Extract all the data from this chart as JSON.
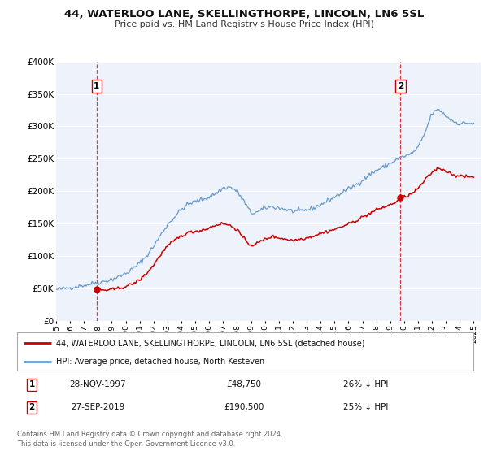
{
  "title": "44, WATERLOO LANE, SKELLINGTHORPE, LINCOLN, LN6 5SL",
  "subtitle": "Price paid vs. HM Land Registry's House Price Index (HPI)",
  "ylim": [
    0,
    400000
  ],
  "yticks": [
    0,
    50000,
    100000,
    150000,
    200000,
    250000,
    300000,
    350000,
    400000
  ],
  "ytick_labels": [
    "£0",
    "£50K",
    "£100K",
    "£150K",
    "£200K",
    "£250K",
    "£300K",
    "£350K",
    "£400K"
  ],
  "xlim_start": 1995.0,
  "xlim_end": 2025.5,
  "sale1_date": 1997.91,
  "sale1_price": 48750,
  "sale1_label": "28-NOV-1997",
  "sale1_price_str": "£48,750",
  "sale1_pct": "26% ↓ HPI",
  "sale2_date": 2019.74,
  "sale2_price": 190500,
  "sale2_label": "27-SEP-2019",
  "sale2_price_str": "£190,500",
  "sale2_pct": "25% ↓ HPI",
  "red_color": "#cc0000",
  "blue_color": "#6699cc",
  "background_color": "#eef2fa",
  "grid_color": "#ffffff",
  "legend_line1": "44, WATERLOO LANE, SKELLINGTHORPE, LINCOLN, LN6 5SL (detached house)",
  "legend_line2": "HPI: Average price, detached house, North Kesteven",
  "footer1": "Contains HM Land Registry data © Crown copyright and database right 2024.",
  "footer2": "This data is licensed under the Open Government Licence v3.0."
}
